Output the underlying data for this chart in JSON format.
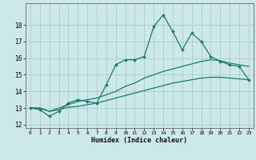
{
  "title": "",
  "xlabel": "Humidex (Indice chaleur)",
  "bg_color": "#cce8e8",
  "grid_color": "#aacccc",
  "line_color": "#1a7a6e",
  "xlim": [
    -0.5,
    23.5
  ],
  "ylim": [
    11.8,
    19.3
  ],
  "xticks": [
    0,
    1,
    2,
    3,
    4,
    5,
    6,
    7,
    8,
    9,
    10,
    11,
    12,
    13,
    14,
    15,
    16,
    17,
    18,
    19,
    20,
    21,
    22,
    23
  ],
  "yticks": [
    12,
    13,
    14,
    15,
    16,
    17,
    18
  ],
  "line1_x": [
    0,
    1,
    2,
    3,
    4,
    5,
    6,
    7,
    8,
    9,
    10,
    11,
    12,
    13,
    14,
    15,
    16,
    17,
    18,
    19,
    20,
    21,
    22,
    23
  ],
  "line1_y": [
    13.0,
    12.9,
    12.5,
    12.8,
    13.3,
    13.5,
    13.4,
    13.3,
    14.4,
    15.6,
    15.9,
    15.9,
    16.1,
    17.9,
    18.6,
    17.6,
    16.5,
    17.5,
    17.0,
    16.1,
    15.8,
    15.6,
    15.5,
    14.7
  ],
  "line2_x": [
    0,
    1,
    2,
    3,
    4,
    5,
    6,
    7,
    8,
    9,
    10,
    11,
    12,
    13,
    14,
    15,
    16,
    17,
    18,
    19,
    20,
    21,
    22,
    23
  ],
  "line2_y": [
    13.0,
    13.0,
    12.8,
    13.0,
    13.2,
    13.4,
    13.5,
    13.6,
    13.8,
    14.0,
    14.3,
    14.5,
    14.8,
    15.0,
    15.2,
    15.35,
    15.5,
    15.65,
    15.8,
    15.9,
    15.85,
    15.7,
    15.6,
    15.5
  ],
  "line3_x": [
    0,
    1,
    2,
    3,
    4,
    5,
    6,
    7,
    8,
    9,
    10,
    11,
    12,
    13,
    14,
    15,
    16,
    17,
    18,
    19,
    20,
    21,
    22,
    23
  ],
  "line3_y": [
    13.0,
    13.0,
    12.8,
    12.9,
    13.05,
    13.1,
    13.2,
    13.3,
    13.45,
    13.6,
    13.75,
    13.9,
    14.05,
    14.2,
    14.35,
    14.5,
    14.6,
    14.7,
    14.8,
    14.85,
    14.85,
    14.8,
    14.75,
    14.7
  ]
}
